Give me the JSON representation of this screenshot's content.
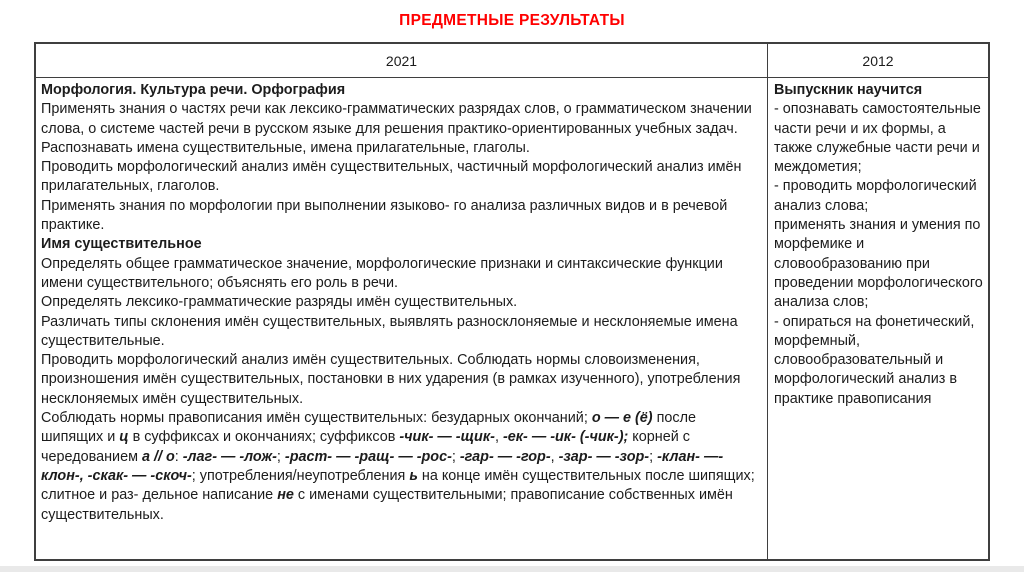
{
  "page": {
    "title": "ПРЕДМЕТНЫЕ РЕЗУЛЬТАТЫ",
    "title_color": "#ff0000",
    "background_color": "#ffffff",
    "border_color": "#3f3f3f"
  },
  "table": {
    "columns": [
      {
        "header": "2021"
      },
      {
        "header": "2012"
      }
    ],
    "left_cell": {
      "paragraphs": [
        {
          "runs": [
            {
              "t": "Морфология. Культура речи. Орфография",
              "b": true
            }
          ]
        },
        {
          "runs": [
            {
              "t": "Применять знания о частях речи как лексико-грамматических разрядах слов, о грамматическом значении слова, о системе частей речи в русском языке для решения практико-ориентированных учебных задач."
            }
          ]
        },
        {
          "runs": [
            {
              "t": "Распознавать имена существительные, имена прилагательные, глаголы."
            }
          ]
        },
        {
          "runs": [
            {
              "t": "Проводить морфологический анализ имён существительных, частичный морфологический анализ имён прилагательных, глаголов."
            }
          ]
        },
        {
          "runs": [
            {
              "t": "Применять знания по морфологии при выполнении языково- го анализа различных видов и в речевой практике."
            }
          ]
        },
        {
          "runs": [
            {
              "t": "Имя существительное",
              "b": true
            }
          ]
        },
        {
          "runs": [
            {
              "t": "Определять общее грамматическое значение, морфологические признаки и синтаксические функции имени существительного; объяснять его роль в речи."
            }
          ]
        },
        {
          "runs": [
            {
              "t": "Определять лексико-грамматические разряды имён существительных."
            }
          ]
        },
        {
          "runs": [
            {
              "t": "Различать типы склонения имён существительных, выявлять разносклоняемые и несклоняемые имена существительные."
            }
          ]
        },
        {
          "runs": [
            {
              "t": "Проводить морфологический анализ имён существительных. Соблюдать нормы словоизменения, произношения имён существительных, постановки в них ударения (в рамках изученного), употребления несклоняемых имён существительных."
            }
          ]
        },
        {
          "runs": [
            {
              "t": "Соблюдать нормы правописания имён существительных: безударных окончаний; "
            },
            {
              "t": "о — е (ё)",
              "b": true,
              "i": true
            },
            {
              "t": " после шипящих и "
            },
            {
              "t": "ц",
              "b": true,
              "i": true
            },
            {
              "t": " в суффиксах  и  окончаниях;  суффиксов "
            },
            {
              "t": "-чик- — -щик-",
              "b": true,
              "i": true
            },
            {
              "t": ", "
            },
            {
              "t": "-ек- — -ик- (-чик-);",
              "b": true,
              "i": true
            },
            {
              "t": " корней с чередованием "
            },
            {
              "t": "а // о",
              "b": true,
              "i": true
            },
            {
              "t": ": "
            },
            {
              "t": "-лаг- — -лож-",
              "b": true,
              "i": true
            },
            {
              "t": "; "
            },
            {
              "t": "-раст- — -ращ- — -рос-",
              "b": true,
              "i": true
            },
            {
              "t": "; "
            },
            {
              "t": "-гар- — -гор-",
              "b": true,
              "i": true
            },
            {
              "t": ", "
            },
            {
              "t": "-зар- — -зор-",
              "b": true,
              "i": true
            },
            {
              "t": "; "
            },
            {
              "t": "-клан- —- клон-, -скак- — -скоч-",
              "b": true,
              "i": true
            },
            {
              "t": "; употребления/неупотребления "
            },
            {
              "t": "ь",
              "b": true,
              "i": true
            },
            {
              "t": " на конце имён существительных после шипящих; слитное и раз- дельное написание "
            },
            {
              "t": "не",
              "b": true,
              "i": true
            },
            {
              "t": " с именами существительными; правописание собственных имён существительных."
            }
          ]
        }
      ]
    },
    "right_cell": {
      "paragraphs": [
        {
          "runs": [
            {
              "t": "Выпускник научится",
              "b": true
            }
          ]
        },
        {
          "runs": [
            {
              "t": "- опознавать самостоятельные части речи и их формы, а также служебные части речи и междометия;"
            }
          ]
        },
        {
          "runs": [
            {
              "t": "- проводить морфологический анализ слова;"
            }
          ]
        },
        {
          "runs": [
            {
              "t": "применять знания и умения по морфемике и словообразованию при проведении морфологического анализа слов;"
            }
          ]
        },
        {
          "runs": [
            {
              "t": "- опираться на фонетический, морфемный, словообразовательный и морфологический анализ в практике правописания"
            }
          ]
        }
      ]
    }
  }
}
